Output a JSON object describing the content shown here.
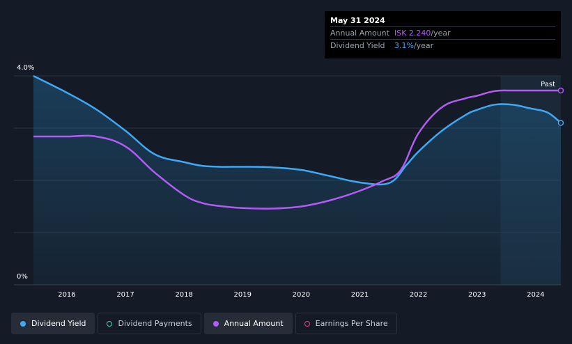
{
  "tooltip": {
    "date": "May 31 2024",
    "amount_label": "Annual Amount",
    "amount_value": "ISK 2.240",
    "amount_unit": "/year",
    "yield_label": "Dividend Yield",
    "yield_value": "3.1%",
    "yield_unit": "/year"
  },
  "legend": [
    {
      "label": "Dividend Yield",
      "color": "#3fa9f5",
      "style": "filled",
      "active": true
    },
    {
      "label": "Dividend Payments",
      "color": "#3ed2b5",
      "style": "hollow",
      "active": false
    },
    {
      "label": "Annual Amount",
      "color": "#b35bf5",
      "style": "filled",
      "active": true
    },
    {
      "label": "Earnings Per Share",
      "color": "#e0457b",
      "style": "hollow",
      "active": false
    }
  ],
  "chart_data": {
    "type": "line",
    "y_tick_labels": [
      "4.0%",
      "0%"
    ],
    "ylim": [
      0,
      4.0
    ],
    "xlim": [
      2015.43,
      2024.43
    ],
    "x_ticks": [
      2016,
      2017,
      2018,
      2019,
      2020,
      2021,
      2022,
      2023,
      2024
    ],
    "x_tick_labels": [
      "2016",
      "2017",
      "2018",
      "2019",
      "2020",
      "2021",
      "2022",
      "2023",
      "2024"
    ],
    "gridlines": [
      1.0,
      2.0,
      3.0,
      4.0
    ],
    "past_label": "Past",
    "past_region_start": 2023.4,
    "series": [
      {
        "name": "Dividend Yield",
        "color": "#3fa9f5",
        "area": true,
        "x": [
          2015.43,
          2016.0,
          2016.5,
          2017.0,
          2017.5,
          2018.0,
          2018.3,
          2018.6,
          2019.0,
          2019.5,
          2020.0,
          2020.5,
          2021.0,
          2021.5,
          2021.8,
          2022.0,
          2022.4,
          2022.8,
          2023.0,
          2023.3,
          2023.6,
          2023.9,
          2024.2,
          2024.43
        ],
        "y": [
          4.0,
          3.68,
          3.36,
          2.95,
          2.5,
          2.35,
          2.28,
          2.26,
          2.26,
          2.25,
          2.2,
          2.08,
          1.96,
          1.95,
          2.3,
          2.55,
          2.95,
          3.25,
          3.35,
          3.45,
          3.45,
          3.38,
          3.3,
          3.1
        ]
      },
      {
        "name": "Annual Amount",
        "color": "#b35bf5",
        "area": false,
        "x": [
          2015.43,
          2016.0,
          2016.5,
          2017.0,
          2017.5,
          2018.0,
          2018.3,
          2018.6,
          2019.0,
          2019.5,
          2020.0,
          2020.5,
          2021.0,
          2021.4,
          2021.7,
          2022.0,
          2022.4,
          2022.8,
          2023.0,
          2023.3,
          2023.6,
          2024.0,
          2024.43
        ],
        "y": [
          2.84,
          2.84,
          2.84,
          2.65,
          2.15,
          1.72,
          1.57,
          1.51,
          1.47,
          1.46,
          1.5,
          1.62,
          1.8,
          1.99,
          2.2,
          2.9,
          3.4,
          3.57,
          3.62,
          3.71,
          3.72,
          3.72,
          3.72
        ]
      }
    ]
  }
}
